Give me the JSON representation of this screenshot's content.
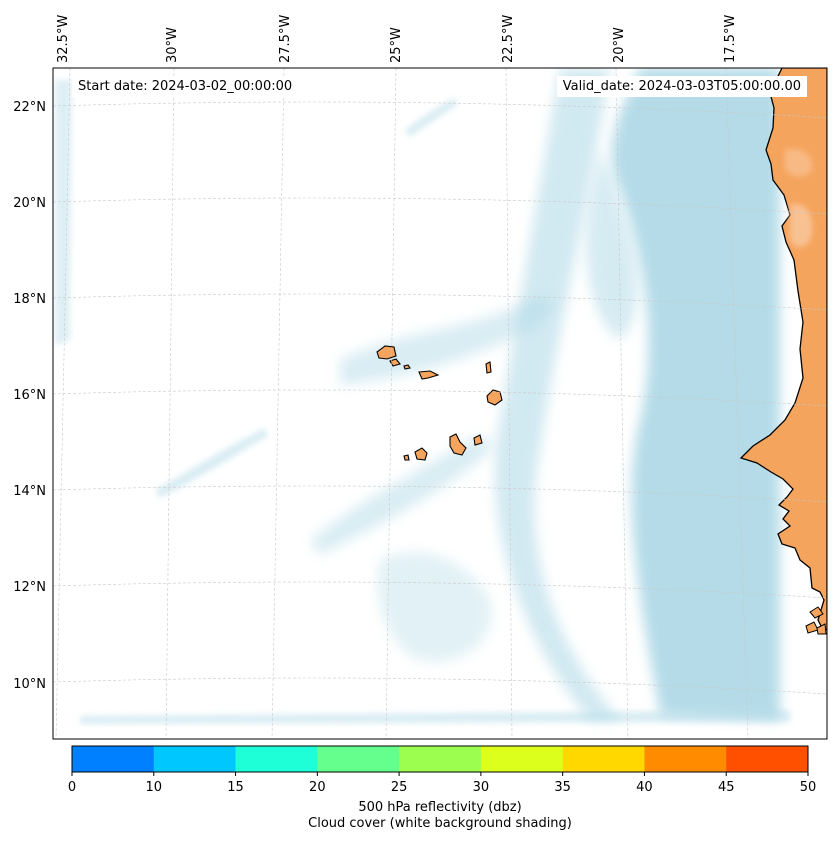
{
  "map": {
    "start_date_text": "Start date: 2024-03-02_00:00:00",
    "valid_date_text": "Valid_date: 2024-03-03T05:00:00.00",
    "longitude_labels": [
      "32.5°W",
      "30°W",
      "27.5°W",
      "25°W",
      "22.5°W",
      "20°W",
      "17.5°W"
    ],
    "latitude_labels": [
      "22°N",
      "20°N",
      "18°N",
      "16°N",
      "14°N",
      "12°N",
      "10°N"
    ],
    "gridlines": "dashed",
    "colors": {
      "land": "#f5a45d",
      "land_highlight": "#f9c9a0",
      "cloud": "#add8e6",
      "coastline": "#000000",
      "ocean": "#ffffff"
    }
  },
  "colorbar": {
    "ticks": [
      "0",
      "10",
      "15",
      "20",
      "25",
      "30",
      "35",
      "40",
      "45",
      "50"
    ],
    "colors": [
      "#0080ff",
      "#00c8ff",
      "#1effd8",
      "#64ff8c",
      "#9cff50",
      "#dcff1c",
      "#ffd800",
      "#ff8c00",
      "#ff5000"
    ],
    "label_line1": "500 hPa reflectivity (dbz)",
    "label_line2": "Cloud cover (white background shading)"
  }
}
